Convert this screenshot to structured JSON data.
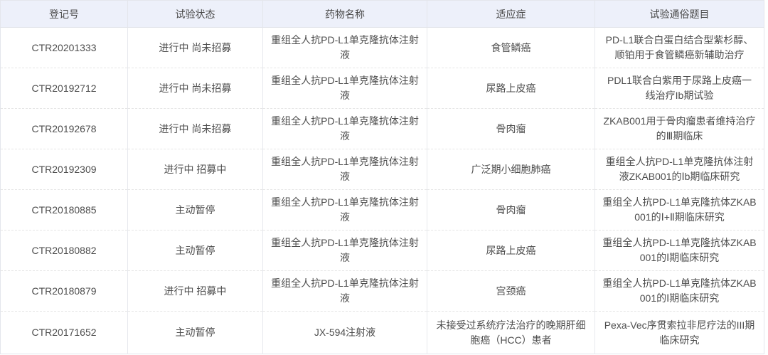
{
  "table": {
    "headers": [
      "登记号",
      "试验状态",
      "药物名称",
      "适应症",
      "试验通俗题目"
    ],
    "rows": [
      {
        "reg_no": "CTR20201333",
        "status": "进行中 尚未招募",
        "drug": "重组全人抗PD-L1单克隆抗体注射液",
        "indication": "食管鳞癌",
        "title": "PD-L1联合白蛋白结合型紫杉醇、顺铂用于食管鳞癌新辅助治疗"
      },
      {
        "reg_no": "CTR20192712",
        "status": "进行中 尚未招募",
        "drug": "重组全人抗PD-L1单克隆抗体注射液",
        "indication": "尿路上皮癌",
        "title": "PDL1联合白紫用于尿路上皮癌一线治疗Ib期试验"
      },
      {
        "reg_no": "CTR20192678",
        "status": "进行中 尚未招募",
        "drug": "重组全人抗PD-L1单克隆抗体注射液",
        "indication": "骨肉瘤",
        "title": "ZKAB001用于骨肉瘤患者维持治疗的Ⅲ期临床"
      },
      {
        "reg_no": "CTR20192309",
        "status": "进行中 招募中",
        "drug": "重组全人抗PD-L1单克隆抗体注射液",
        "indication": "广泛期小细胞肺癌",
        "title": "重组全人抗PD-L1单克隆抗体注射液ZKAB001的Ⅰb期临床研究"
      },
      {
        "reg_no": "CTR20180885",
        "status": "主动暂停",
        "drug": "重组全人抗PD-L1单克隆抗体注射液",
        "indication": "骨肉瘤",
        "title": "重组全人抗PD-L1单克隆抗体ZKAB001的Ⅰ+Ⅱ期临床研究"
      },
      {
        "reg_no": "CTR20180882",
        "status": "主动暂停",
        "drug": "重组全人抗PD-L1单克隆抗体注射液",
        "indication": "尿路上皮癌",
        "title": "重组全人抗PD-L1单克隆抗体ZKAB001的Ⅰ期临床研究"
      },
      {
        "reg_no": "CTR20180879",
        "status": "进行中 招募中",
        "drug": "重组全人抗PD-L1单克隆抗体注射液",
        "indication": "宫颈癌",
        "title": "重组全人抗PD-L1单克隆抗体ZKAB001的Ⅰ期临床研究"
      },
      {
        "reg_no": "CTR20171652",
        "status": "主动暂停",
        "drug": "JX-594注射液",
        "indication": "未接受过系统疗法治疗的晚期肝细胞癌（HCC）患者",
        "title": "Pexa-Vec序贯索拉非尼疗法的III期临床研究"
      }
    ]
  }
}
